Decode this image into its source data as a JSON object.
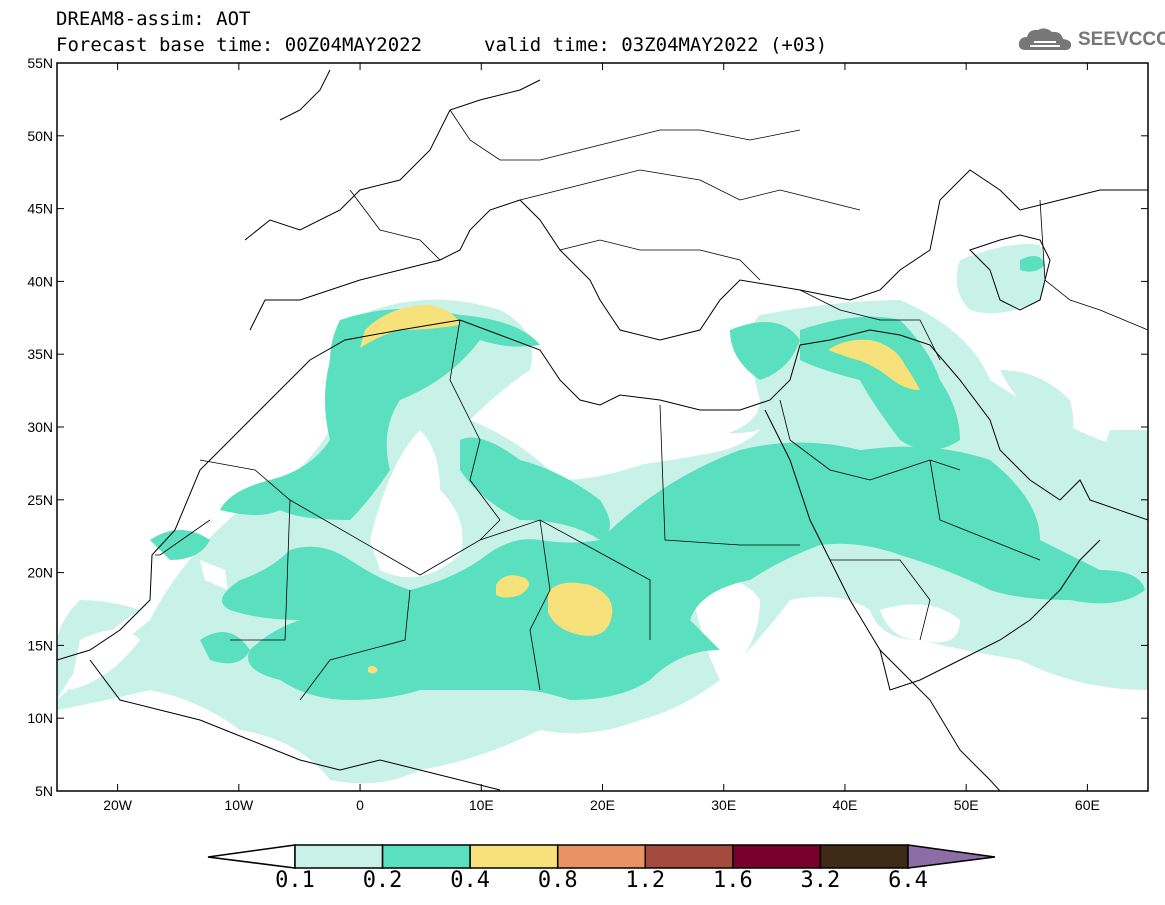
{
  "header": {
    "title": "DREAM8-assim: AOT",
    "forecast_base": "Forecast base time: 00Z04MAY2022",
    "valid_time": "valid time: 03Z04MAY2022 (+03)",
    "logo_text": "SEEVCCC"
  },
  "map": {
    "lat_range": [
      5,
      55
    ],
    "lon_range": [
      -25,
      65
    ],
    "lat_ticks": [
      "55N",
      "50N",
      "45N",
      "40N",
      "35N",
      "30N",
      "25N",
      "20N",
      "15N",
      "10N",
      "5N"
    ],
    "lon_ticks": [
      "20W",
      "10W",
      "0",
      "10E",
      "20E",
      "30E",
      "40E",
      "50E",
      "60E"
    ]
  },
  "colorbar": {
    "colors": [
      "#c8f2e8",
      "#5ae0be",
      "#f7e17a",
      "#e89266",
      "#a44a3e",
      "#78002a",
      "#3e2a16",
      "#8e6ca6"
    ],
    "labels": [
      "0.1",
      "0.2",
      "0.4",
      "0.8",
      "1.2",
      "1.6",
      "3.2",
      "6.4"
    ]
  }
}
